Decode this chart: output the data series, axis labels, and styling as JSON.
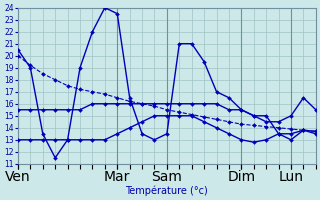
{
  "title": "Température (°c)",
  "bg_color": "#cce8e8",
  "plot_bg_color": "#cce8e8",
  "grid_color": "#a0c4c4",
  "line_color": "#0000bb",
  "ylim": [
    11,
    24
  ],
  "xlim": [
    0,
    24
  ],
  "day_labels": [
    "Ven",
    "Mar",
    "Sam",
    "Dim",
    "Lun"
  ],
  "day_positions": [
    0,
    8,
    12,
    18,
    22
  ],
  "series": [
    {
      "x": [
        0,
        1,
        2,
        3,
        4,
        5,
        6,
        7,
        8,
        9,
        10,
        11,
        12,
        13,
        14,
        15,
        16,
        17,
        18,
        19,
        20,
        21,
        22,
        23,
        24
      ],
      "y": [
        20.0,
        19.2,
        18.5,
        18.0,
        17.5,
        17.2,
        17.0,
        16.8,
        16.5,
        16.2,
        16.0,
        15.8,
        15.5,
        15.3,
        15.1,
        14.9,
        14.7,
        14.5,
        14.3,
        14.2,
        14.1,
        14.0,
        13.9,
        13.8,
        13.7
      ],
      "linestyle": "--"
    },
    {
      "x": [
        0,
        1,
        2,
        3,
        4,
        5,
        6,
        7,
        8,
        9,
        10,
        11,
        12,
        13,
        14,
        15,
        16,
        17,
        18,
        19,
        20,
        21,
        22,
        23,
        24
      ],
      "y": [
        20.5,
        19.0,
        13.5,
        11.5,
        13.0,
        19.0,
        22.0,
        24.0,
        23.5,
        16.5,
        13.5,
        13.0,
        13.5,
        21.0,
        21.0,
        19.5,
        17.0,
        16.5,
        15.5,
        15.0,
        15.0,
        13.5,
        13.0,
        13.8,
        13.5
      ],
      "linestyle": "-"
    },
    {
      "x": [
        0,
        1,
        2,
        3,
        4,
        5,
        6,
        7,
        8,
        9,
        10,
        11,
        12,
        13,
        14,
        15,
        16,
        17,
        18,
        19,
        20,
        21,
        22,
        23,
        24
      ],
      "y": [
        15.5,
        15.5,
        15.5,
        15.5,
        15.5,
        15.5,
        16.0,
        16.0,
        16.0,
        16.0,
        16.0,
        16.0,
        16.0,
        16.0,
        16.0,
        16.0,
        16.0,
        15.5,
        15.5,
        15.0,
        14.5,
        14.5,
        15.0,
        16.5,
        15.5
      ],
      "linestyle": "-"
    },
    {
      "x": [
        0,
        1,
        2,
        3,
        4,
        5,
        6,
        7,
        8,
        9,
        10,
        11,
        12,
        13,
        14,
        15,
        16,
        17,
        18,
        19,
        20,
        21,
        22,
        23,
        24
      ],
      "y": [
        13.0,
        13.0,
        13.0,
        13.0,
        13.0,
        13.0,
        13.0,
        13.0,
        13.5,
        14.0,
        14.5,
        15.0,
        15.0,
        15.0,
        15.0,
        14.5,
        14.0,
        13.5,
        13.0,
        12.8,
        13.0,
        13.5,
        13.5,
        13.8,
        13.7
      ],
      "linestyle": "-"
    }
  ]
}
